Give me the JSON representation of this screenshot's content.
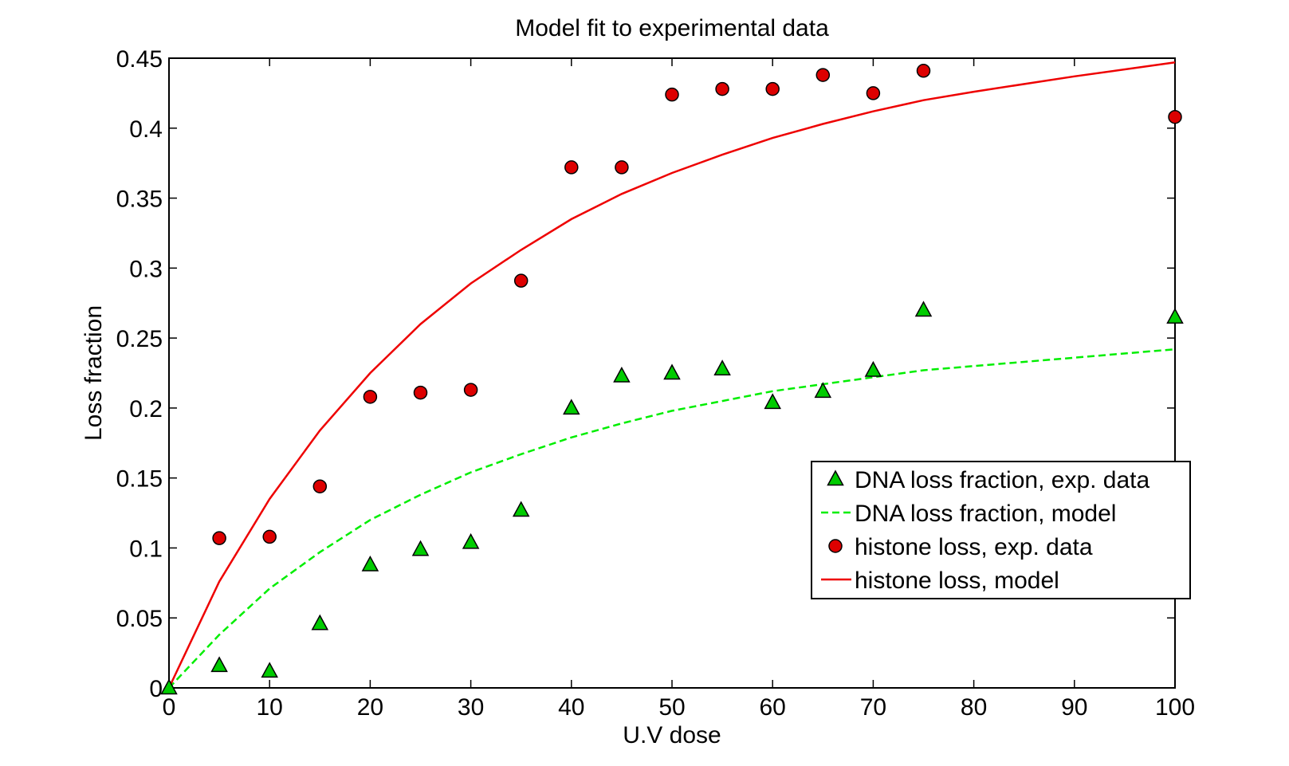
{
  "chart_data": {
    "type": "scatter",
    "title": "Model fit to experimental data",
    "xlabel": "U.V dose",
    "ylabel": "Loss fraction",
    "xlim": [
      0,
      100
    ],
    "ylim": [
      0,
      0.45
    ],
    "xticks": [
      0,
      10,
      20,
      30,
      40,
      50,
      60,
      70,
      80,
      90,
      100
    ],
    "xtick_labels": [
      "0",
      "10",
      "20",
      "30",
      "40",
      "50",
      "60",
      "70",
      "80",
      "90",
      "100"
    ],
    "yticks": [
      0,
      0.05,
      0.1,
      0.15,
      0.2,
      0.25,
      0.3,
      0.35,
      0.4,
      0.45
    ],
    "ytick_labels": [
      "0",
      "0.05",
      "0.1",
      "0.15",
      "0.2",
      "0.25",
      "0.3",
      "0.35",
      "0.4",
      "0.45"
    ],
    "grid": false,
    "legend_position": "lower-right",
    "series": [
      {
        "name": "DNA loss fraction, exp. data",
        "kind": "markers",
        "marker": "triangle",
        "color": "#00cc00",
        "x": [
          0,
          5,
          10,
          15,
          20,
          25,
          30,
          35,
          40,
          45,
          50,
          55,
          60,
          65,
          70,
          75,
          100
        ],
        "y": [
          0.0,
          0.016,
          0.012,
          0.046,
          0.088,
          0.099,
          0.104,
          0.127,
          0.2,
          0.223,
          0.225,
          0.228,
          0.204,
          0.212,
          0.227,
          0.27,
          0.265
        ]
      },
      {
        "name": "DNA loss fraction, model",
        "kind": "line",
        "dash": "dashed",
        "color": "#00ee00",
        "x": [
          0,
          5,
          10,
          15,
          20,
          25,
          30,
          35,
          40,
          45,
          50,
          55,
          60,
          65,
          70,
          75,
          100
        ],
        "y": [
          0.0,
          0.038,
          0.071,
          0.097,
          0.12,
          0.138,
          0.154,
          0.167,
          0.179,
          0.189,
          0.198,
          0.205,
          0.212,
          0.217,
          0.222,
          0.227,
          0.242
        ]
      },
      {
        "name": "histone loss, exp. data",
        "kind": "markers",
        "marker": "circle",
        "color": "#dd0000",
        "x": [
          5,
          10,
          15,
          20,
          25,
          30,
          35,
          40,
          45,
          50,
          55,
          60,
          65,
          70,
          75,
          100
        ],
        "y": [
          0.107,
          0.108,
          0.144,
          0.208,
          0.211,
          0.213,
          0.291,
          0.372,
          0.372,
          0.424,
          0.428,
          0.428,
          0.438,
          0.425,
          0.441,
          0.408
        ]
      },
      {
        "name": "histone loss, model",
        "kind": "line",
        "dash": "solid",
        "color": "#ee0000",
        "x": [
          0,
          5,
          10,
          15,
          20,
          25,
          30,
          35,
          40,
          45,
          50,
          55,
          60,
          65,
          70,
          75,
          80,
          90,
          100
        ],
        "y": [
          0.0,
          0.076,
          0.135,
          0.184,
          0.225,
          0.26,
          0.289,
          0.313,
          0.335,
          0.353,
          0.368,
          0.381,
          0.393,
          0.403,
          0.412,
          0.42,
          0.426,
          0.437,
          0.447
        ]
      }
    ]
  }
}
